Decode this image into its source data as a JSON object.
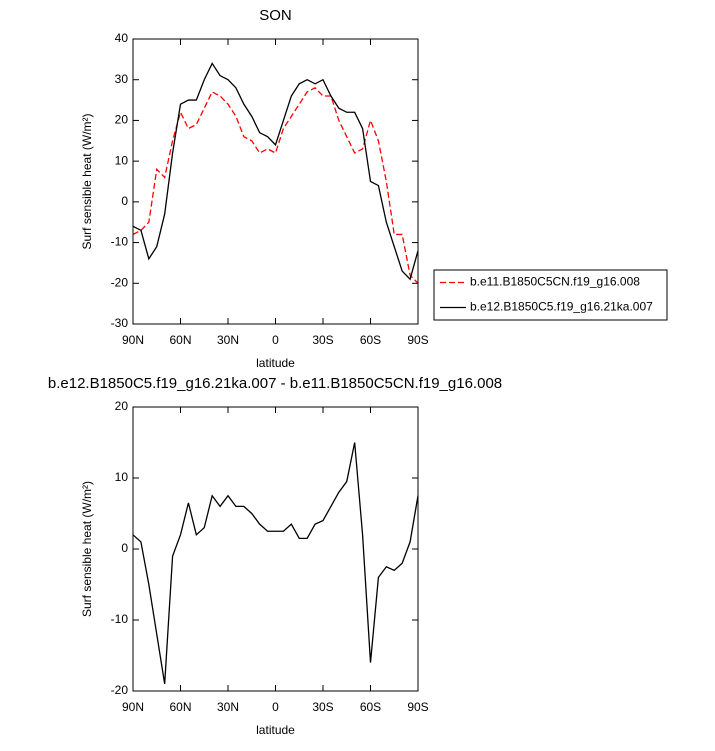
{
  "chart_data": [
    {
      "type": "line",
      "title": "SON",
      "xlabel": "latitude",
      "ylabel": "Surf sensible heat (W/m²)",
      "x": [
        90,
        85,
        80,
        75,
        70,
        65,
        60,
        55,
        50,
        45,
        40,
        35,
        30,
        25,
        20,
        15,
        10,
        5,
        0,
        -5,
        -10,
        -15,
        -20,
        -25,
        -30,
        -35,
        -40,
        -45,
        -50,
        -55,
        -60,
        -65,
        -70,
        -75,
        -80,
        -85,
        -90
      ],
      "xlim": [
        90,
        -90
      ],
      "xticks": [
        {
          "value": 90,
          "label": "90N"
        },
        {
          "value": 60,
          "label": "60N"
        },
        {
          "value": 30,
          "label": "30N"
        },
        0,
        {
          "value": -30,
          "label": "30S"
        },
        {
          "value": -60,
          "label": "60S"
        },
        {
          "value": -90,
          "label": "90S"
        }
      ],
      "ylim": [
        -30,
        40
      ],
      "yticks": [
        -30,
        -20,
        -10,
        0,
        10,
        20,
        30,
        40
      ],
      "series": [
        {
          "name": "b.e11.B1850C5CN.f19_g16.008",
          "color": "#ff0000",
          "dash": true,
          "values": [
            -8,
            -7,
            -5,
            8,
            6,
            15,
            22,
            18,
            19,
            23,
            27,
            26,
            24,
            21,
            16,
            15,
            12,
            13,
            12,
            18,
            21,
            24,
            27,
            28,
            26,
            26,
            20,
            16,
            12,
            13,
            20,
            15,
            5,
            -8,
            -8,
            -18,
            -20
          ]
        },
        {
          "name": "b.e12.B1850C5.f19_g16.21ka.007",
          "color": "#000000",
          "dash": false,
          "values": [
            -6,
            -7,
            -14,
            -11,
            -3,
            12,
            24,
            25,
            25,
            30,
            34,
            31,
            30,
            28,
            24,
            21,
            17,
            16,
            14,
            20,
            26,
            29,
            30,
            29,
            30,
            26,
            23,
            22,
            22,
            18,
            5,
            4,
            -5,
            -11,
            -17,
            -19,
            -12
          ]
        }
      ],
      "legend": "right"
    },
    {
      "type": "line",
      "title": "b.e12.B1850C5.f19_g16.21ka.007 - b.e11.B1850C5CN.f19_g16.008",
      "xlabel": "latitude",
      "ylabel": "Surf sensible heat (W/m²)",
      "x": [
        90,
        85,
        80,
        75,
        70,
        65,
        60,
        55,
        50,
        45,
        40,
        35,
        30,
        25,
        20,
        15,
        10,
        5,
        0,
        -5,
        -10,
        -15,
        -20,
        -25,
        -30,
        -35,
        -40,
        -45,
        -50,
        -55,
        -60,
        -65,
        -70,
        -75,
        -80,
        -85,
        -90
      ],
      "xlim": [
        90,
        -90
      ],
      "xticks": [
        {
          "value": 90,
          "label": "90N"
        },
        {
          "value": 60,
          "label": "60N"
        },
        {
          "value": 30,
          "label": "30N"
        },
        0,
        {
          "value": -30,
          "label": "30S"
        },
        {
          "value": -60,
          "label": "60S"
        },
        {
          "value": -90,
          "label": "90S"
        }
      ],
      "ylim": [
        -20,
        20
      ],
      "yticks": [
        -20,
        -10,
        0,
        10,
        20
      ],
      "color": "#000000",
      "values": [
        2,
        1,
        -5,
        -12,
        -19,
        -1,
        2,
        6.5,
        2,
        3,
        7.5,
        6,
        7.5,
        6,
        6,
        5,
        3.5,
        2.5,
        2.5,
        2.5,
        3.5,
        1.5,
        1.5,
        3.5,
        4,
        6,
        8,
        9.5,
        15,
        2,
        -16,
        -4,
        -2.5,
        -3,
        -2,
        1,
        7.5
      ]
    }
  ]
}
